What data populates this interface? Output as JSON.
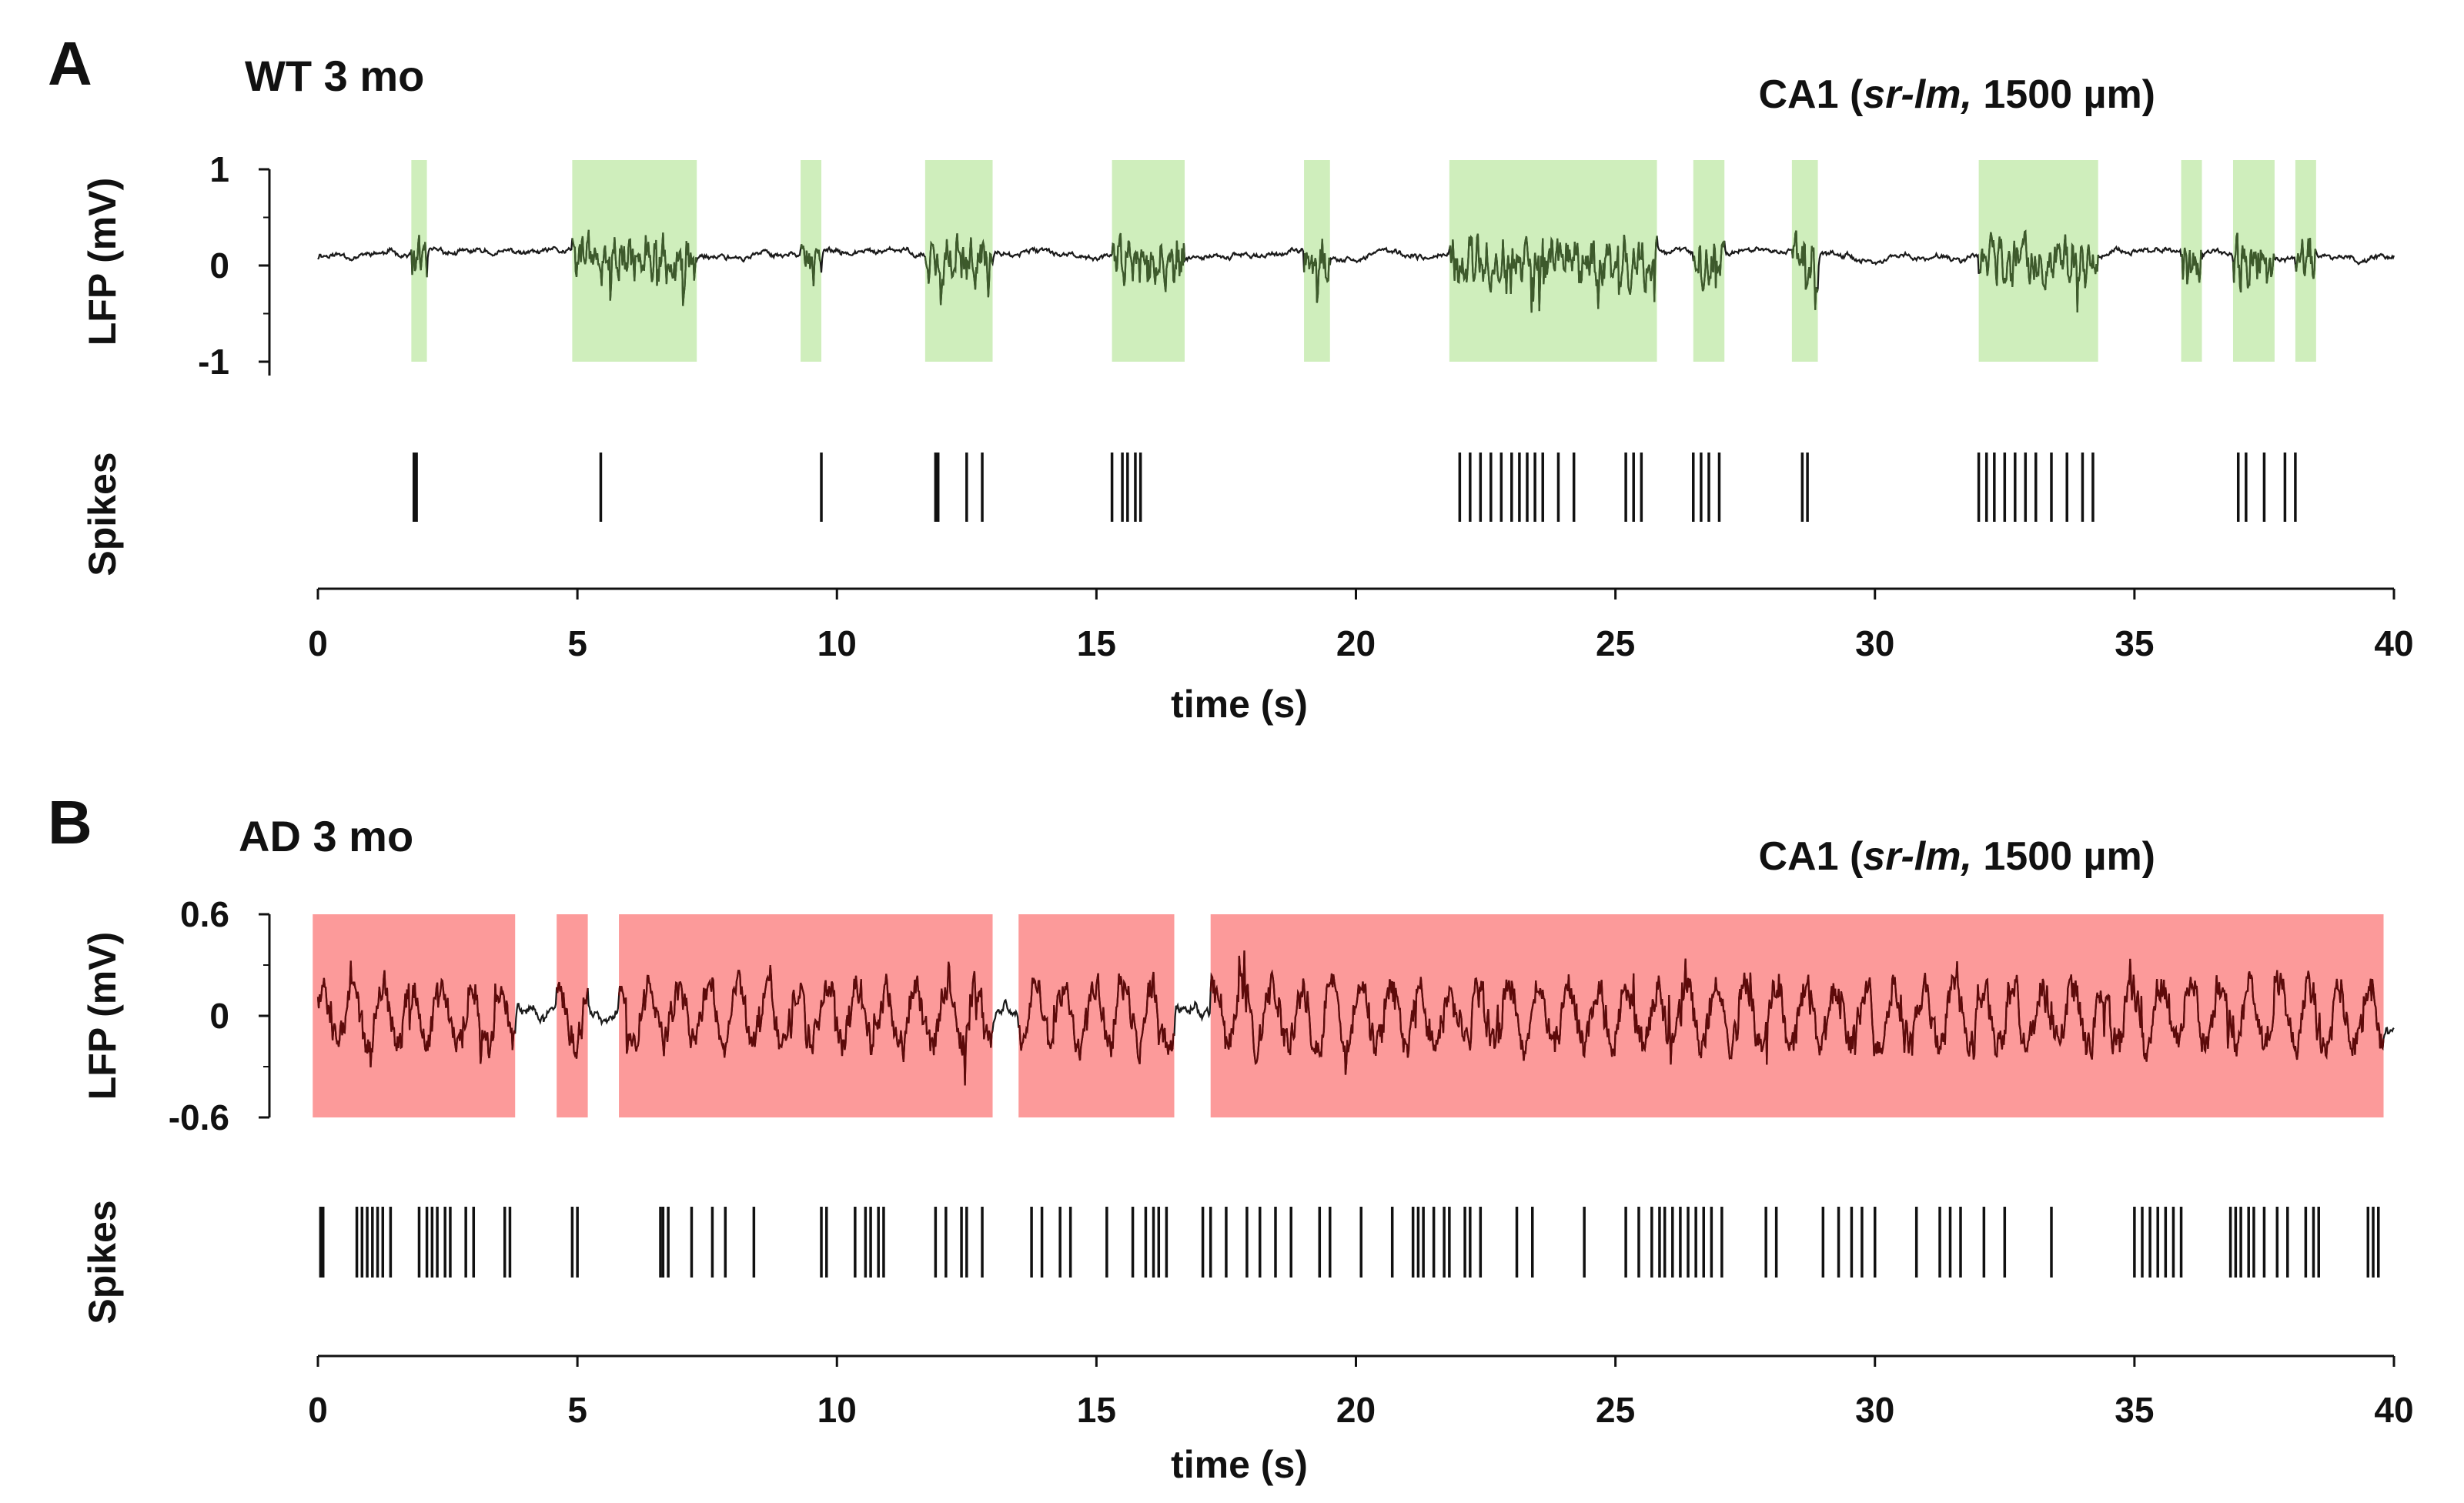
{
  "chart_data": [
    {
      "type": "line",
      "panel_letter": "A",
      "title": "WT 3 mo",
      "region": {
        "prefix": "CA1 (",
        "italic": "sr-lm,",
        "suffix": " 1500 µm)"
      },
      "ylabel": "LFP (mV)",
      "raster_label": "Spikes",
      "xlabel": "time (s)",
      "xlim": [
        0,
        40
      ],
      "xticks": [
        0,
        5,
        10,
        15,
        20,
        25,
        30,
        35,
        40
      ],
      "ylim": [
        -1,
        1
      ],
      "yticks": [
        {
          "value": 1,
          "label": "1"
        },
        {
          "value": 0,
          "label": "0"
        },
        {
          "value": -1,
          "label": "-1"
        }
      ],
      "highlight_color": "#cfeebc",
      "trace_color": "#1a1a1a",
      "active_trace_color": "#3d5a2b",
      "highlight_intervals": [
        [
          1.8,
          2.1
        ],
        [
          4.9,
          7.3
        ],
        [
          9.3,
          9.7
        ],
        [
          11.7,
          13.0
        ],
        [
          15.3,
          16.7
        ],
        [
          19.0,
          19.5
        ],
        [
          21.8,
          25.8
        ],
        [
          26.5,
          27.1
        ],
        [
          28.4,
          28.9
        ],
        [
          32.0,
          34.3
        ],
        [
          35.9,
          36.3
        ],
        [
          36.9,
          37.7
        ],
        [
          38.1,
          38.5
        ]
      ],
      "spike_times": [
        1.85,
        1.9,
        5.45,
        9.7,
        11.9,
        11.95,
        12.5,
        12.8,
        15.3,
        15.5,
        15.6,
        15.75,
        15.85,
        22.0,
        22.2,
        22.4,
        22.6,
        22.8,
        23.0,
        23.15,
        23.3,
        23.45,
        23.6,
        23.9,
        24.2,
        25.2,
        25.35,
        25.5,
        26.5,
        26.65,
        26.8,
        27.0,
        28.6,
        28.7,
        32.0,
        32.15,
        32.3,
        32.5,
        32.7,
        32.9,
        33.1,
        33.4,
        33.7,
        34.0,
        34.2,
        37.0,
        37.15,
        37.5,
        37.9,
        38.1
      ]
    },
    {
      "type": "line",
      "panel_letter": "B",
      "title": "AD 3 mo",
      "region": {
        "prefix": "CA1 (",
        "italic": "sr-lm,",
        "suffix": " 1500 µm)"
      },
      "ylabel": "LFP (mV)",
      "raster_label": "Spikes",
      "xlabel": "time (s)",
      "xlim": [
        0,
        40
      ],
      "xticks": [
        0,
        5,
        10,
        15,
        20,
        25,
        30,
        35,
        40
      ],
      "ylim": [
        -0.6,
        0.6
      ],
      "yticks": [
        {
          "value": 0.6,
          "label": "0.6"
        },
        {
          "value": 0,
          "label": "0"
        },
        {
          "value": -0.6,
          "label": "-0.6"
        }
      ],
      "highlight_color": "#fc9a9a",
      "trace_color": "#1a1a1a",
      "active_trace_color": "#5e0a0a",
      "highlight_intervals": [
        [
          -0.1,
          3.8
        ],
        [
          4.6,
          5.2
        ],
        [
          5.8,
          13.0
        ],
        [
          13.5,
          16.5
        ],
        [
          17.2,
          39.8
        ]
      ],
      "spike_times": [
        0.05,
        0.1,
        0.75,
        0.85,
        0.95,
        1.05,
        1.15,
        1.25,
        1.4,
        1.95,
        2.1,
        2.2,
        2.3,
        2.45,
        2.55,
        2.85,
        3.0,
        3.6,
        3.7,
        4.9,
        5.0,
        6.6,
        6.65,
        6.75,
        7.2,
        7.6,
        7.85,
        8.4,
        9.7,
        9.8,
        10.35,
        10.55,
        10.65,
        10.8,
        10.9,
        11.9,
        12.1,
        12.4,
        12.5,
        12.8,
        13.75,
        13.95,
        14.3,
        14.5,
        15.2,
        15.7,
        15.95,
        16.1,
        16.2,
        16.35,
        17.05,
        17.2,
        17.5,
        17.9,
        18.15,
        18.45,
        18.75,
        19.3,
        19.5,
        20.1,
        20.7,
        21.1,
        21.2,
        21.3,
        21.5,
        21.7,
        21.8,
        22.1,
        22.2,
        22.4,
        23.1,
        23.4,
        24.4,
        25.2,
        25.45,
        25.7,
        25.85,
        25.95,
        26.1,
        26.25,
        26.4,
        26.55,
        26.7,
        26.85,
        27.05,
        27.9,
        28.1,
        29.0,
        29.3,
        29.55,
        29.75,
        30.0,
        30.8,
        31.25,
        31.45,
        31.65,
        32.1,
        32.5,
        33.4,
        35.0,
        35.15,
        35.3,
        35.45,
        35.6,
        35.75,
        35.9,
        36.85,
        36.95,
        37.05,
        37.2,
        37.3,
        37.5,
        37.75,
        37.95,
        38.3,
        38.45,
        38.55,
        39.5,
        39.6,
        39.7
      ]
    }
  ]
}
